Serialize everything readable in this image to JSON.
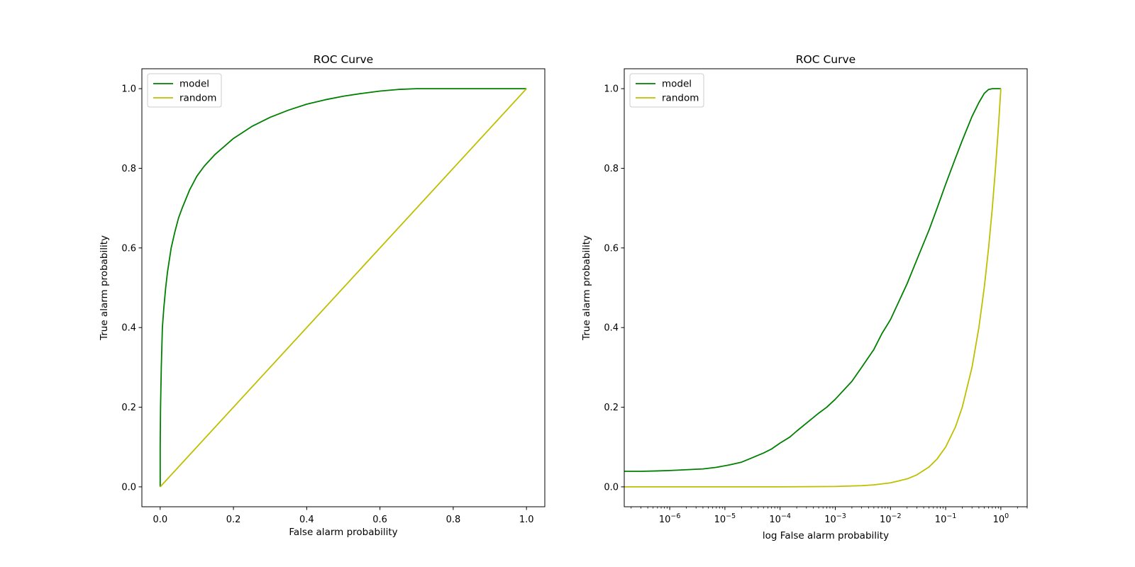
{
  "chart_data": [
    {
      "type": "line",
      "title": "ROC Curve",
      "xlabel": "False alarm probability",
      "ylabel": "True alarm probability",
      "xscale": "linear",
      "xlim": [
        -0.05,
        1.05
      ],
      "ylim": [
        -0.05,
        1.05
      ],
      "xticks": [
        0.0,
        0.2,
        0.4,
        0.6,
        0.8,
        1.0
      ],
      "xtick_labels": [
        "0.0",
        "0.2",
        "0.4",
        "0.6",
        "0.8",
        "1.0"
      ],
      "yticks": [
        0.0,
        0.2,
        0.4,
        0.6,
        0.8,
        1.0
      ],
      "ytick_labels": [
        "0.0",
        "0.2",
        "0.4",
        "0.6",
        "0.8",
        "1.0"
      ],
      "grid": false,
      "legend": "upper left",
      "series": [
        {
          "name": "model",
          "color": "#008000",
          "x": [
            0,
            0,
            0.001,
            0.003,
            0.006,
            0.01,
            0.015,
            0.02,
            0.03,
            0.04,
            0.05,
            0.06,
            0.08,
            0.1,
            0.12,
            0.15,
            0.2,
            0.25,
            0.3,
            0.35,
            0.4,
            0.45,
            0.5,
            0.55,
            0.6,
            0.65,
            0.7,
            0.75,
            0.8,
            0.9,
            1.0
          ],
          "y": [
            0,
            0.1,
            0.2,
            0.3,
            0.4,
            0.45,
            0.5,
            0.54,
            0.6,
            0.64,
            0.675,
            0.7,
            0.745,
            0.78,
            0.805,
            0.835,
            0.875,
            0.905,
            0.928,
            0.946,
            0.961,
            0.972,
            0.981,
            0.988,
            0.994,
            0.998,
            1.0,
            1.0,
            1.0,
            1.0,
            1.0
          ]
        },
        {
          "name": "random",
          "color": "#bfbf00",
          "x": [
            0,
            1
          ],
          "y": [
            0,
            1
          ]
        }
      ]
    },
    {
      "type": "line",
      "title": "ROC Curve",
      "xlabel": "log False alarm probability",
      "ylabel": "True alarm probability",
      "xscale": "log",
      "xlim": [
        1.5e-07,
        3.0
      ],
      "ylim": [
        -0.05,
        1.05
      ],
      "xticks": [
        1e-06,
        1e-05,
        0.0001,
        0.001,
        0.01,
        0.1,
        1
      ],
      "xtick_labels": [
        "10",
        "10",
        "10",
        "10",
        "10",
        "10",
        "10"
      ],
      "xtick_exponents": [
        "−6",
        "−5",
        "−4",
        "−3",
        "−2",
        "−1",
        "0"
      ],
      "yticks": [
        0.0,
        0.2,
        0.4,
        0.6,
        0.8,
        1.0
      ],
      "ytick_labels": [
        "0.0",
        "0.2",
        "0.4",
        "0.6",
        "0.8",
        "1.0"
      ],
      "grid": false,
      "legend": "upper left",
      "series": [
        {
          "name": "model",
          "color": "#008000",
          "x": [
            1.5e-07,
            3e-07,
            6e-07,
            1e-06,
            2e-06,
            4e-06,
            7e-06,
            1.2e-05,
            2e-05,
            3e-05,
            5e-05,
            7e-05,
            0.0001,
            0.00015,
            0.0002,
            0.0003,
            0.0005,
            0.0007,
            0.001,
            0.002,
            0.003,
            0.005,
            0.007,
            0.01,
            0.02,
            0.03,
            0.05,
            0.07,
            0.1,
            0.15,
            0.2,
            0.3,
            0.4,
            0.5,
            0.6,
            0.7,
            1.0
          ],
          "y": [
            0.039,
            0.039,
            0.04,
            0.041,
            0.043,
            0.045,
            0.049,
            0.055,
            0.062,
            0.072,
            0.085,
            0.095,
            0.11,
            0.125,
            0.14,
            0.16,
            0.185,
            0.2,
            0.22,
            0.265,
            0.3,
            0.345,
            0.385,
            0.42,
            0.51,
            0.57,
            0.645,
            0.7,
            0.76,
            0.825,
            0.87,
            0.93,
            0.965,
            0.988,
            0.998,
            1.0,
            1.0
          ]
        },
        {
          "name": "random",
          "color": "#bfbf00",
          "x": [
            1.5e-07,
            0.0001,
            0.001,
            0.003,
            0.005,
            0.01,
            0.02,
            0.03,
            0.05,
            0.07,
            0.1,
            0.15,
            0.2,
            0.3,
            0.4,
            0.5,
            0.6,
            0.7,
            0.8,
            0.9,
            1.0
          ],
          "y": [
            0.0,
            0.0,
            0.001,
            0.003,
            0.005,
            0.01,
            0.02,
            0.03,
            0.05,
            0.07,
            0.1,
            0.15,
            0.2,
            0.3,
            0.4,
            0.5,
            0.6,
            0.7,
            0.8,
            0.9,
            1.0
          ]
        }
      ]
    }
  ]
}
